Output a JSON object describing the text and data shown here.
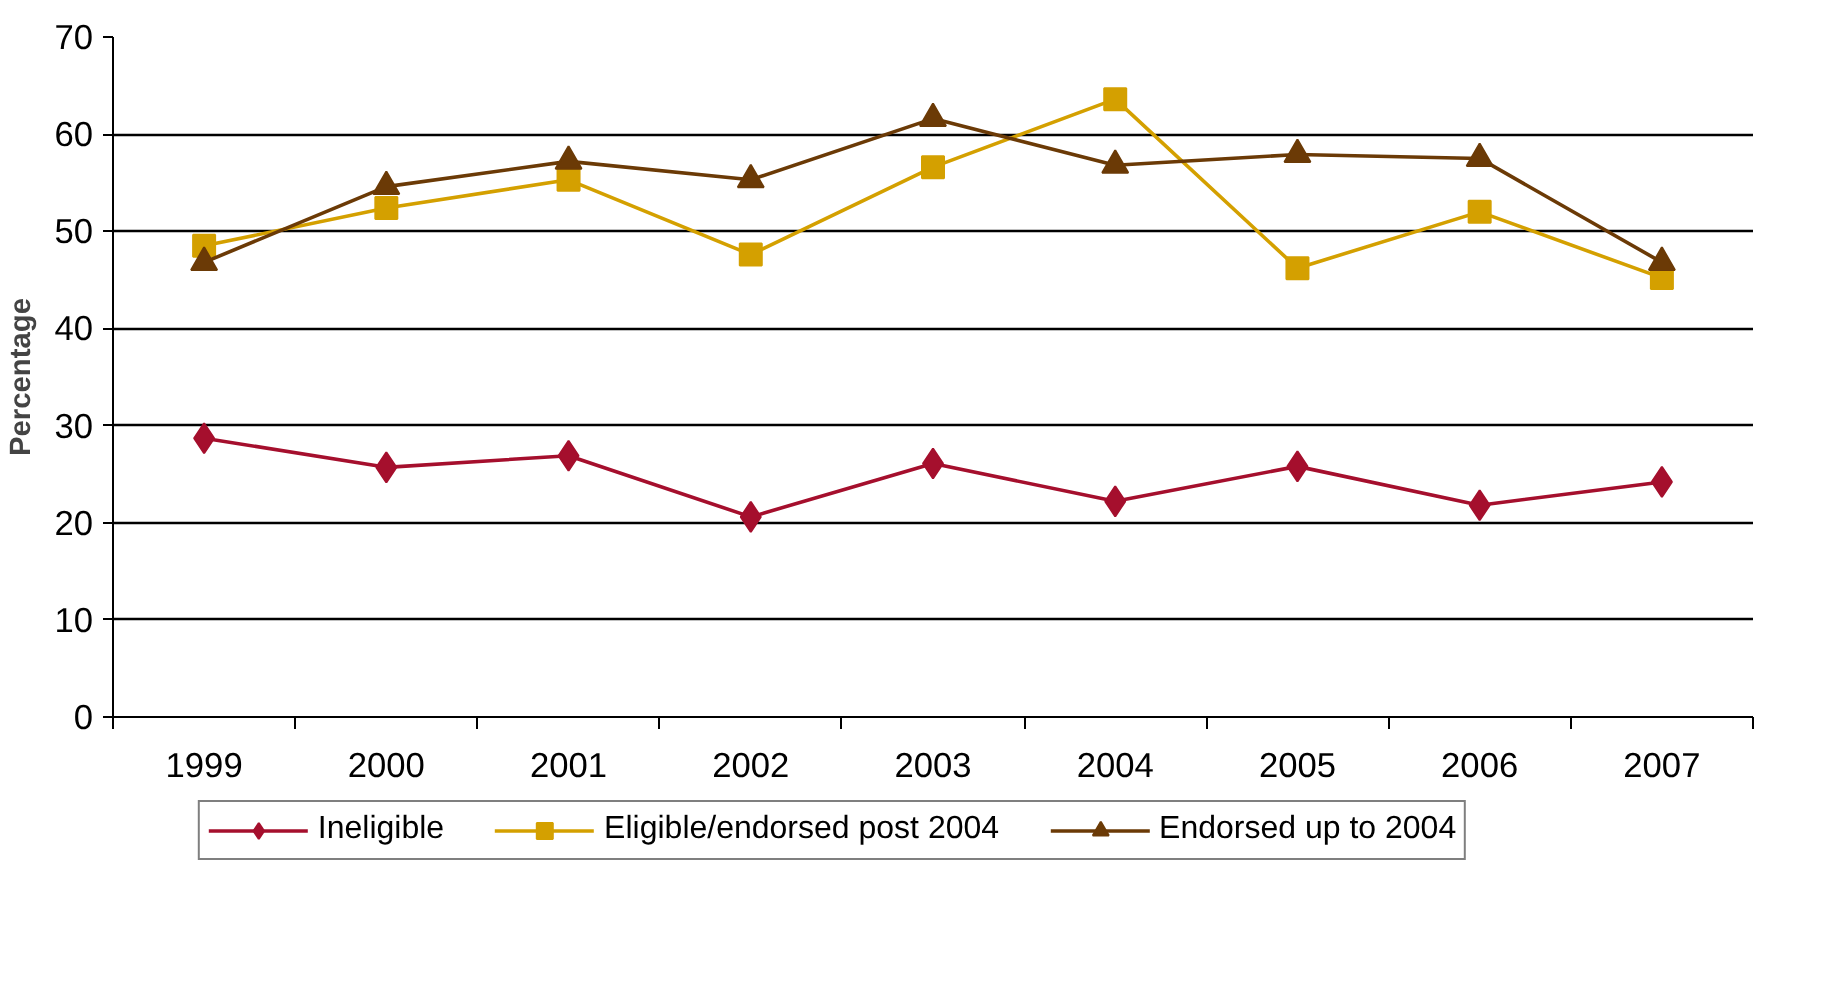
{
  "chart_data": {
    "type": "line",
    "ylabel": "Percentage",
    "categories": [
      "1999",
      "2000",
      "2001",
      "2002",
      "2003",
      "2004",
      "2005",
      "2006",
      "2007"
    ],
    "series": [
      {
        "name": "Ineligible",
        "color": "#a50f2d",
        "marker": "diamond",
        "values": [
          28.7,
          25.7,
          26.9,
          20.6,
          26.1,
          22.2,
          25.8,
          21.8,
          24.2
        ]
      },
      {
        "name": "Eligible/endorsed post 2004",
        "color": "#d4a000",
        "marker": "square",
        "values": [
          48.5,
          52.4,
          55.3,
          47.6,
          56.6,
          63.6,
          46.2,
          52.0,
          45.2
        ]
      },
      {
        "name": "Endorsed up to 2004",
        "color": "#6b3a06",
        "marker": "triangle",
        "values": [
          46.8,
          54.6,
          57.2,
          55.3,
          61.6,
          56.8,
          57.9,
          57.5,
          46.8
        ]
      }
    ],
    "ylim": [
      0,
      70
    ],
    "yticks": [
      0,
      10,
      20,
      30,
      40,
      50,
      60,
      70
    ],
    "grid": "y",
    "legend": "bottom",
    "line_style": "solid"
  }
}
